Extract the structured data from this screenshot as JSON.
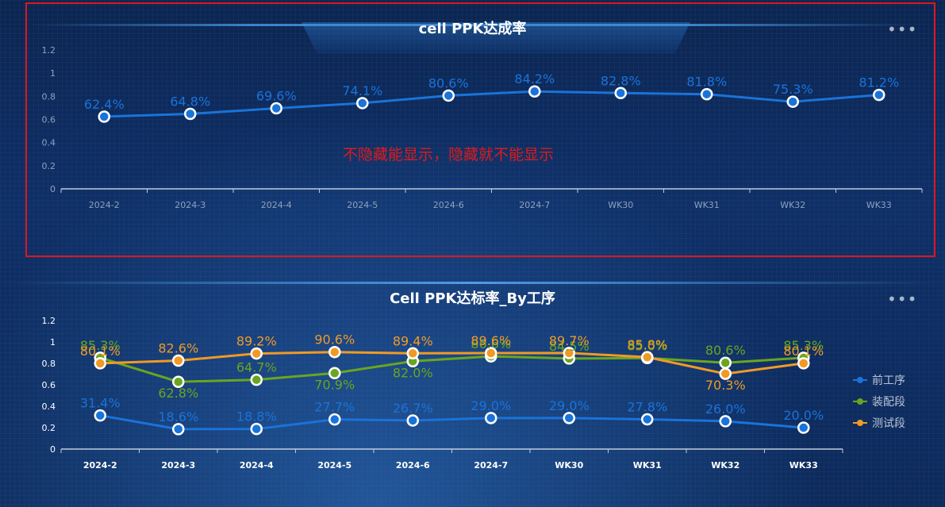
{
  "top_chart": {
    "title": "cell PPK达成率",
    "note": "不隐藏能显示，隐藏就不能显示",
    "menu_label": "•••"
  },
  "bottom_chart": {
    "title": "Cell PPK达标率_By工序",
    "menu_label": "•••"
  },
  "colors": {
    "blue": "#1a73d9",
    "green": "#6aa51f",
    "orange": "#f09a25",
    "frame": "#e0161e"
  },
  "chart_data": [
    {
      "type": "line",
      "title": "cell PPK达成率",
      "categories": [
        "2024-2",
        "2024-3",
        "2024-4",
        "2024-5",
        "2024-6",
        "2024-7",
        "WK30",
        "WK31",
        "WK32",
        "WK33"
      ],
      "series": [
        {
          "values": [
            0.624,
            0.648,
            0.696,
            0.741,
            0.806,
            0.842,
            0.828,
            0.818,
            0.753,
            0.812
          ],
          "labels": [
            "62.4%",
            "64.8%",
            "69.6%",
            "74.1%",
            "80.6%",
            "84.2%",
            "82.8%",
            "81.8%",
            "75.3%",
            "81.2%"
          ]
        }
      ],
      "yticks": [
        "0",
        "0.2",
        "0.4",
        "0.6",
        "0.8",
        "1",
        "1.2"
      ],
      "ylim": [
        0,
        1.2
      ],
      "grid": false
    },
    {
      "type": "line",
      "title": "Cell PPK达标率_By工序",
      "categories": [
        "2024-2",
        "2024-3",
        "2024-4",
        "2024-5",
        "2024-6",
        "2024-7",
        "WK30",
        "WK31",
        "WK32",
        "WK33"
      ],
      "series": [
        {
          "name": "前工序",
          "values": [
            0.314,
            0.186,
            0.188,
            0.277,
            0.267,
            0.29,
            0.29,
            0.278,
            0.26,
            0.2
          ],
          "labels": [
            "31.4%",
            "18.6%",
            "18.8%",
            "27.7%",
            "26.7%",
            "29.0%",
            "29.0%",
            "27.8%",
            "26.0%",
            "20.0%"
          ]
        },
        {
          "name": "装配段",
          "values": [
            0.853,
            0.628,
            0.647,
            0.709,
            0.82,
            0.866,
            0.845,
            0.85,
            0.806,
            0.853
          ],
          "labels": [
            "85.3%",
            "62.8%",
            "64.7%",
            "70.9%",
            "82.0%",
            "86.6%",
            "84.5%",
            "85.0%",
            "80.6%",
            "85.3%"
          ]
        },
        {
          "name": "测试段",
          "values": [
            0.801,
            0.826,
            0.892,
            0.906,
            0.894,
            0.896,
            0.897,
            0.858,
            0.703,
            0.801
          ],
          "labels": [
            "80.1%",
            "82.6%",
            "89.2%",
            "90.6%",
            "89.4%",
            "89.6%",
            "89.7%",
            "85.8%",
            "70.3%",
            "80.1%"
          ]
        }
      ],
      "yticks": [
        "0",
        "0.2",
        "0.4",
        "0.6",
        "0.8",
        "1",
        "1.2"
      ],
      "ylim": [
        0,
        1.2
      ],
      "legend_position": "right",
      "grid": false
    }
  ]
}
